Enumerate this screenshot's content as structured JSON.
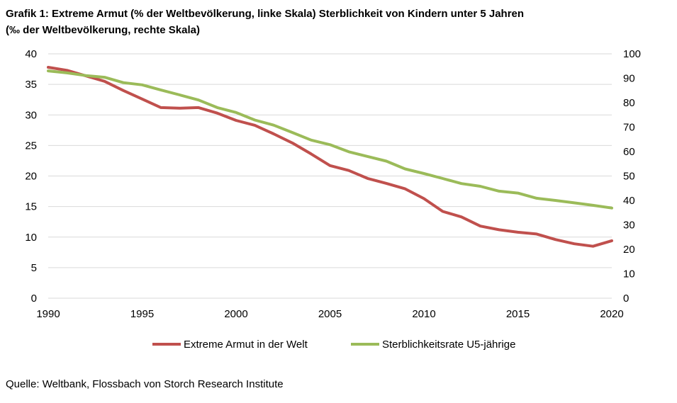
{
  "title_line1": "Grafik 1: Extreme Armut (% der Weltbevölkerung, linke Skala) Sterblichkeit von Kindern unter 5 Jahren",
  "title_line2": "(‰ der Weltbevölkerung, rechte Skala)",
  "source": "Quelle: Weltbank, Flossbach von Storch Research Institute",
  "colors": {
    "poverty": "#c0504d",
    "mortality": "#9bbb59",
    "grid": "#d9d9d9"
  },
  "chart_data": {
    "type": "line",
    "x": [
      1990,
      1991,
      1992,
      1993,
      1994,
      1995,
      1996,
      1997,
      1998,
      1999,
      2000,
      2001,
      2002,
      2003,
      2004,
      2005,
      2006,
      2007,
      2008,
      2009,
      2010,
      2011,
      2012,
      2013,
      2014,
      2015,
      2016,
      2017,
      2018,
      2019,
      2020
    ],
    "x_ticks": [
      "1990",
      "1995",
      "2000",
      "2005",
      "2010",
      "2015",
      "2020"
    ],
    "xlim": [
      1990,
      2020
    ],
    "y_left": {
      "lim": [
        0,
        40
      ],
      "ticks": [
        "0",
        "5",
        "10",
        "15",
        "20",
        "25",
        "30",
        "35",
        "40"
      ]
    },
    "y_right": {
      "lim": [
        0,
        100
      ],
      "ticks": [
        "0",
        "10",
        "20",
        "30",
        "40",
        "50",
        "60",
        "70",
        "80",
        "90",
        "100"
      ]
    },
    "series": [
      {
        "name": "Extreme Armut in der Welt",
        "axis": "left",
        "values": [
          37.8,
          37.3,
          36.4,
          35.5,
          34.0,
          32.6,
          31.2,
          31.1,
          31.2,
          30.3,
          29.1,
          28.3,
          26.9,
          25.4,
          23.6,
          21.7,
          20.9,
          19.6,
          18.8,
          17.9,
          16.3,
          14.2,
          13.3,
          11.8,
          11.2,
          10.8,
          10.5,
          9.6,
          8.9,
          8.5,
          9.4
        ]
      },
      {
        "name": "Sterblichkeitsrate U5-jährige",
        "axis": "right",
        "values": [
          93.0,
          92.2,
          91.1,
          90.4,
          88.2,
          87.3,
          85.2,
          83.2,
          81.1,
          78.0,
          76.0,
          72.9,
          70.8,
          67.8,
          64.7,
          62.8,
          59.9,
          58.0,
          56.1,
          52.9,
          51.0,
          49.0,
          46.9,
          45.8,
          43.8,
          43.0,
          40.9,
          40.0,
          39.0,
          38.0,
          36.9
        ]
      }
    ],
    "legend_position": "bottom"
  }
}
